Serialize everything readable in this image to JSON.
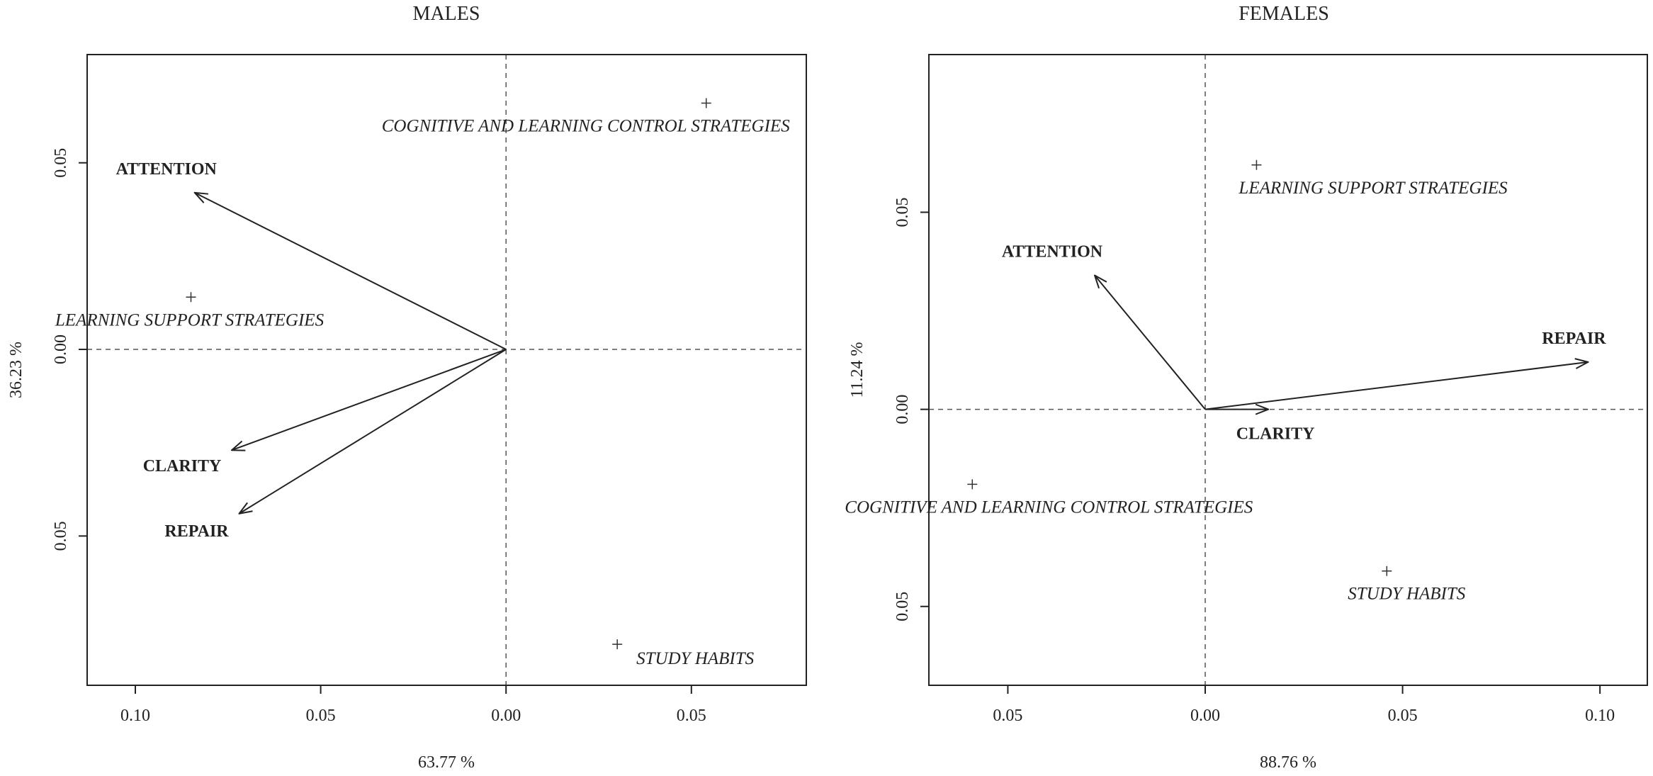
{
  "chart_data": [
    {
      "type": "scatter",
      "title": "MALES",
      "xlabel": "63.77 %",
      "ylabel": "36.23 %",
      "xticks": [
        {
          "value": -0.1,
          "label": "0.10"
        },
        {
          "value": -0.05,
          "label": "0.05"
        },
        {
          "value": 0.0,
          "label": "0.00"
        },
        {
          "value": 0.05,
          "label": "0.05"
        }
      ],
      "yticks": [
        {
          "value": 0.05,
          "label": "0.05"
        },
        {
          "value": 0.0,
          "label": "0.00"
        },
        {
          "value": -0.05,
          "label": "0.05"
        }
      ],
      "xlim": [
        -0.113,
        0.081
      ],
      "ylim": [
        -0.09,
        0.079
      ],
      "vectors": [
        {
          "label": "ATTENTION",
          "x": -0.084,
          "y": 0.042
        },
        {
          "label": "CLARITY",
          "x": -0.074,
          "y": -0.027
        },
        {
          "label": "REPAIR",
          "x": -0.072,
          "y": -0.044
        }
      ],
      "points": [
        {
          "label": "COGNITIVE AND LEARNING CONTROL STRATEGIES",
          "x": 0.054,
          "y": 0.066
        },
        {
          "label": "LEARNING SUPPORT STRATEGIES",
          "x": -0.085,
          "y": 0.014
        },
        {
          "label": "STUDY HABITS",
          "x": 0.03,
          "y": -0.079
        }
      ],
      "grid": false
    },
    {
      "type": "scatter",
      "title": "FEMALES",
      "xlabel": "88.76 %",
      "ylabel": "11.24 %",
      "xticks": [
        {
          "value": -0.05,
          "label": "0.05"
        },
        {
          "value": 0.0,
          "label": "0.00"
        },
        {
          "value": 0.05,
          "label": "0.05"
        },
        {
          "value": 0.1,
          "label": "0.10"
        }
      ],
      "yticks": [
        {
          "value": 0.05,
          "label": "0.05"
        },
        {
          "value": 0.0,
          "label": "0.00"
        },
        {
          "value": -0.05,
          "label": "0.05"
        }
      ],
      "xlim": [
        -0.07,
        0.112
      ],
      "ylim": [
        -0.07,
        0.09
      ],
      "vectors": [
        {
          "label": "ATTENTION",
          "x": -0.028,
          "y": 0.034
        },
        {
          "label": "CLARITY",
          "x": 0.016,
          "y": 0.0
        },
        {
          "label": "REPAIR",
          "x": 0.097,
          "y": 0.012
        }
      ],
      "points": [
        {
          "label": "LEARNING SUPPORT STRATEGIES",
          "x": 0.013,
          "y": 0.062
        },
        {
          "label": "COGNITIVE AND LEARNING CONTROL STRATEGIES",
          "x": -0.059,
          "y": -0.019
        },
        {
          "label": "STUDY HABITS",
          "x": 0.046,
          "y": -0.041
        }
      ],
      "grid": false
    }
  ]
}
